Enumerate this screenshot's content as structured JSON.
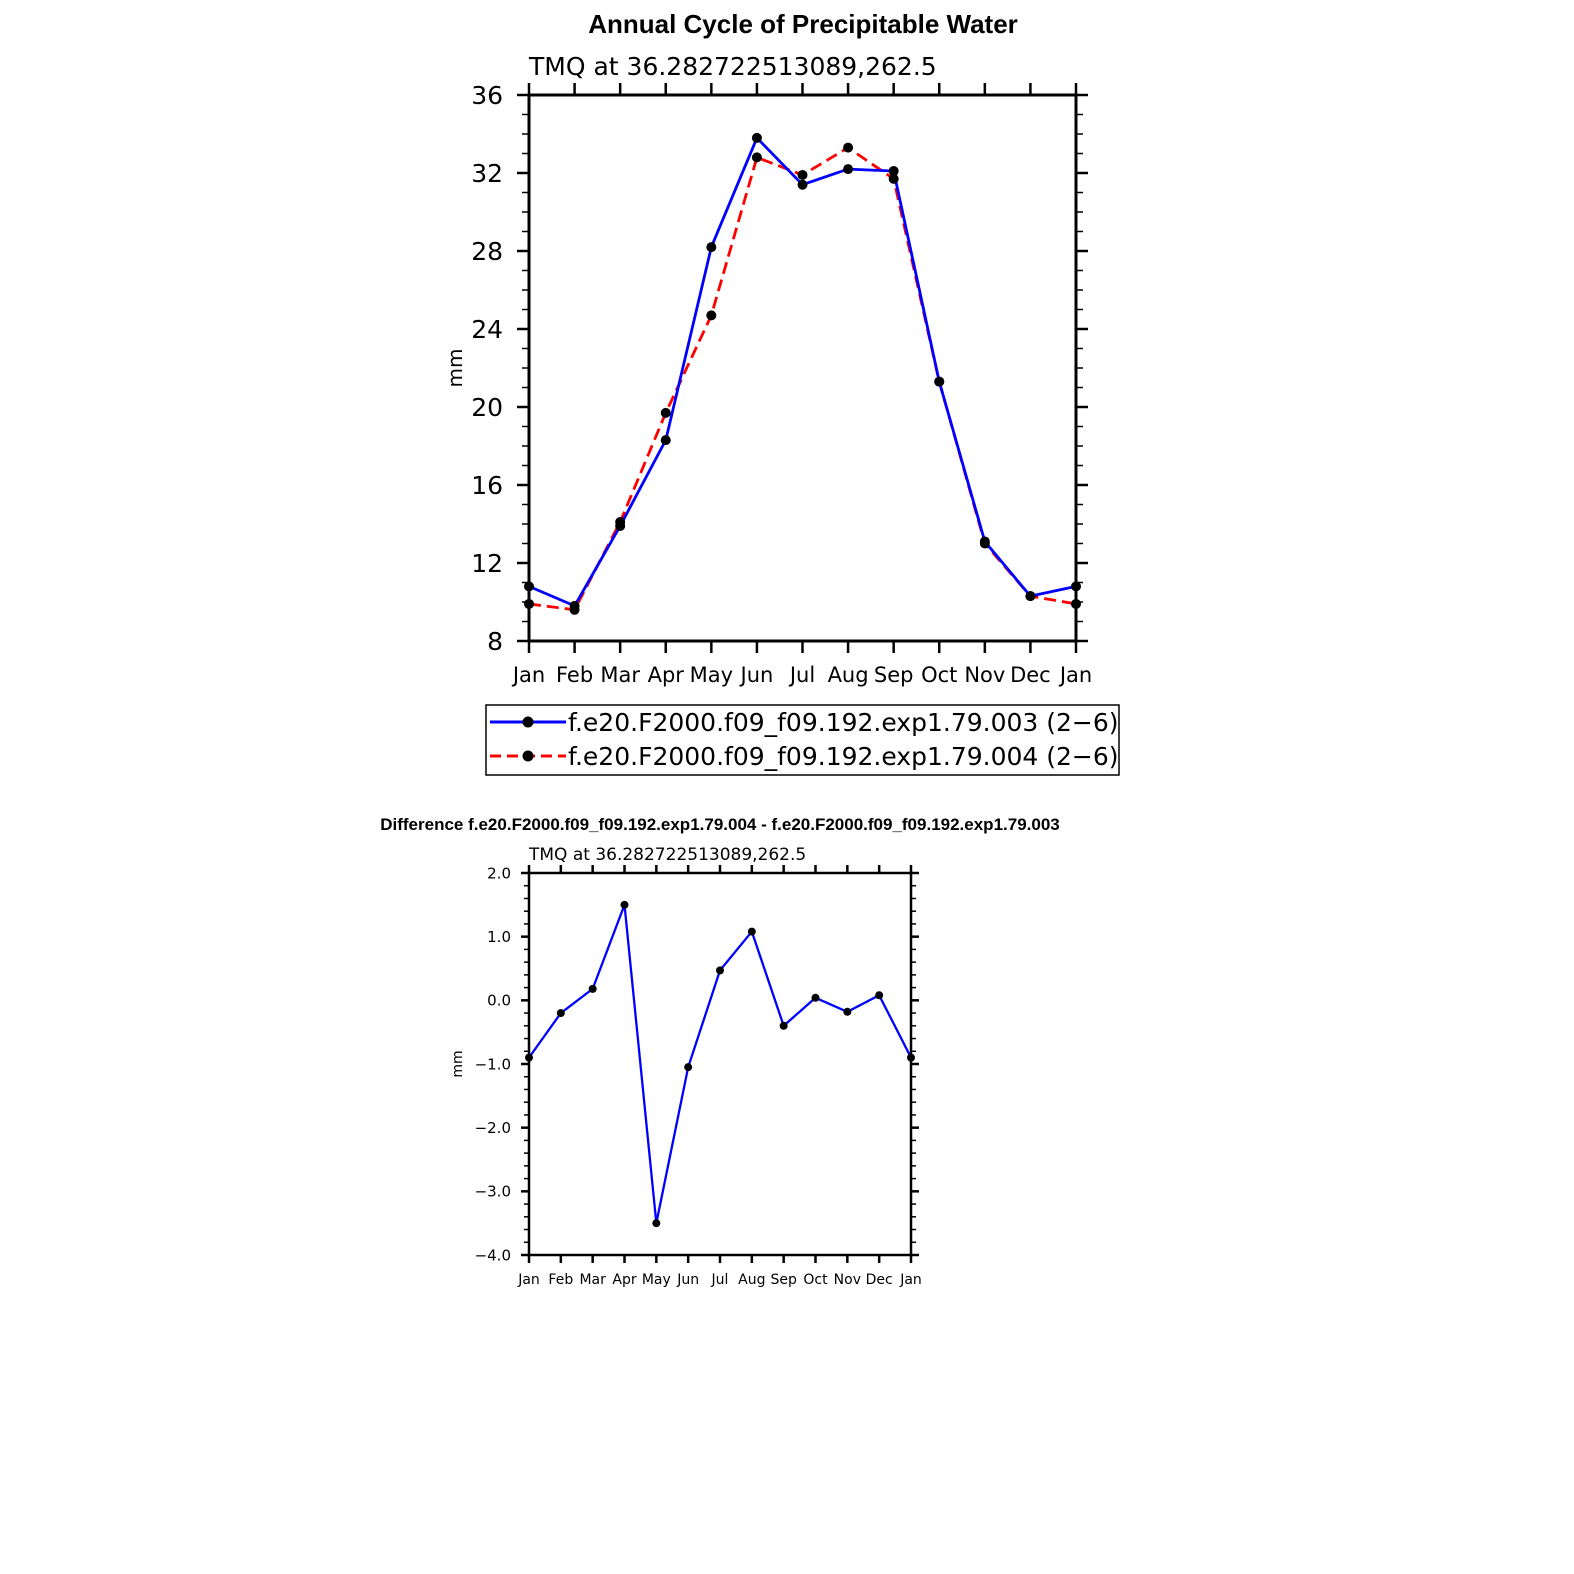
{
  "chart_data": [
    {
      "type": "line",
      "title": "Annual Cycle of Precipitable Water",
      "subtitle": "TMQ at 36.282722513089,262.5",
      "ylabel": "mm",
      "xlabel": "",
      "ylim": [
        8,
        36
      ],
      "yticks": [
        "8",
        "12",
        "16",
        "20",
        "24",
        "28",
        "32",
        "36"
      ],
      "categories": [
        "Jan",
        "Feb",
        "Mar",
        "Apr",
        "May",
        "Jun",
        "Jul",
        "Aug",
        "Sep",
        "Oct",
        "Nov",
        "Dec",
        "Jan"
      ],
      "grid": false,
      "legend": "bottom",
      "series": [
        {
          "name": "f.e20.F2000.f09_f09.192.exp1.79.003 (2−6)",
          "color": "#0000ff",
          "dash": "solid",
          "values": [
            10.8,
            9.8,
            13.9,
            18.3,
            28.2,
            33.8,
            31.4,
            32.2,
            32.1,
            21.3,
            13.1,
            10.3,
            10.8
          ]
        },
        {
          "name": "f.e20.F2000.f09_f09.192.exp1.79.004 (2−6)",
          "color": "#ff0000",
          "dash": "dashed",
          "values": [
            9.9,
            9.6,
            14.1,
            19.7,
            24.7,
            32.8,
            31.9,
            33.3,
            31.7,
            21.3,
            13.0,
            10.3,
            9.9
          ]
        }
      ]
    },
    {
      "type": "line",
      "title": "Difference f.e20.F2000.f09_f09.192.exp1.79.004 - f.e20.F2000.f09_f09.192.exp1.79.003",
      "subtitle": "TMQ at 36.282722513089,262.5",
      "ylabel": "mm",
      "xlabel": "",
      "ylim": [
        -4,
        2
      ],
      "yticks": [
        "−4.0",
        "−3.0",
        "−2.0",
        "−1.0",
        "0.0",
        "1.0",
        "2.0"
      ],
      "categories": [
        "Jan",
        "Feb",
        "Mar",
        "Apr",
        "May",
        "Jun",
        "Jul",
        "Aug",
        "Sep",
        "Oct",
        "Nov",
        "Dec",
        "Jan"
      ],
      "grid": false,
      "series": [
        {
          "color": "#0000ff",
          "values": [
            -0.9,
            -0.2,
            0.18,
            1.5,
            -3.5,
            -1.05,
            0.47,
            1.08,
            -0.4,
            0.04,
            -0.18,
            0.08,
            -0.9
          ]
        }
      ]
    }
  ]
}
